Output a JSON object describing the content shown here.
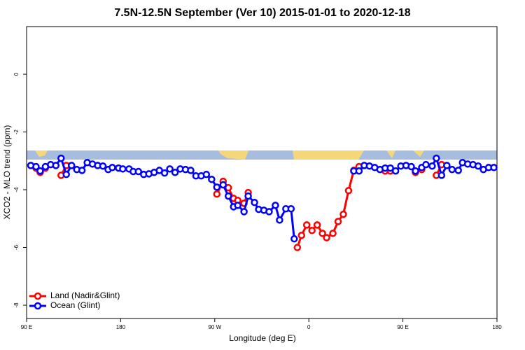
{
  "chart_data": {
    "type": "line",
    "title": "7.5N-12.5N September (Ver 10)   2015-01-01 to 2020-12-18",
    "x_label": "Longitude (deg E)",
    "y_label": "XCO2 - MLO trend (ppm)",
    "xlim": [
      -270,
      180
    ],
    "xticks": [
      {
        "value": -270,
        "label": "90 E"
      },
      {
        "value": -180,
        "label": "180"
      },
      {
        "value": -90,
        "label": "90 W"
      },
      0,
      {
        "value": 90,
        "label": "90 E"
      },
      180
    ],
    "ylim": [
      -8.46,
      1.65
    ],
    "yticks": [
      0,
      -2,
      -4,
      -6,
      -8
    ],
    "legend": "bottom-left",
    "series": [
      {
        "name": "Land (Nadir&Glint)",
        "color": "#ff0000",
        "x": [
          -261,
          -257,
          -252,
          null,
          -237,
          -232,
          null,
          -88,
          -82,
          -77,
          -72,
          -68,
          -62,
          -58,
          null,
          -11,
          -7,
          -2,
          3,
          8,
          13,
          17,
          23,
          28,
          33,
          38,
          43,
          48,
          null,
          73,
          78,
          null,
          102,
          108,
          null,
          122,
          127
        ],
        "values": [
          -3.25,
          -3.4,
          -3.25,
          null,
          -3.5,
          -3.16,
          null,
          -4.15,
          -3.71,
          -3.93,
          -4.3,
          -4.37,
          -4.47,
          -4.1,
          null,
          -6.0,
          -5.58,
          -5.22,
          -5.41,
          -5.22,
          -5.51,
          -5.66,
          -5.51,
          -5.1,
          -4.85,
          -4.03,
          -3.33,
          -3.2,
          null,
          -3.35,
          -3.35,
          null,
          -3.4,
          -3.3,
          null,
          -3.5,
          -3.13
        ]
      },
      {
        "name": "Ocean (Glint)",
        "color": "#0000ff",
        "x": [
          -266,
          -261,
          -257,
          -252,
          -247,
          -242,
          -237,
          -232,
          -227,
          -222,
          -217,
          -212,
          -207,
          -202,
          -197,
          -192,
          -188,
          -182,
          -178,
          -172,
          -168,
          -163,
          -158,
          -153,
          -148,
          -143,
          -138,
          -133,
          -128,
          -123,
          -118,
          -113,
          -108,
          -103,
          -98,
          -93,
          -88,
          -82,
          -77,
          -72,
          -68,
          -62,
          -58,
          -52,
          -48,
          -43,
          -38,
          -32,
          -28,
          -22,
          -17,
          -14,
          null,
          43,
          48,
          53,
          58,
          63,
          68,
          73,
          78,
          83,
          88,
          93,
          98,
          102,
          108,
          112,
          118,
          122,
          127,
          132,
          137,
          143,
          147,
          152,
          157,
          162,
          167,
          172,
          177
        ],
        "values": [
          -3.16,
          -3.2,
          -3.35,
          -3.2,
          -3.13,
          -3.16,
          -2.91,
          -3.47,
          -3.16,
          -3.3,
          -3.33,
          -3.06,
          -3.11,
          -3.16,
          -3.18,
          -3.3,
          -3.23,
          -3.25,
          -3.28,
          -3.28,
          -3.37,
          -3.37,
          -3.47,
          -3.45,
          -3.4,
          -3.33,
          -3.42,
          -3.28,
          -3.4,
          -3.28,
          -3.3,
          -3.33,
          -3.52,
          -3.52,
          -3.47,
          -3.64,
          -3.91,
          -3.83,
          -4.22,
          -4.59,
          -4.54,
          -4.76,
          -4.22,
          -4.44,
          -4.68,
          -4.71,
          -4.76,
          -4.54,
          -5.05,
          -4.66,
          -4.66,
          -5.7,
          null,
          -3.35,
          -3.35,
          -3.16,
          -3.18,
          -3.23,
          -3.3,
          -3.25,
          -3.25,
          -3.35,
          -3.18,
          -3.16,
          -3.2,
          -3.35,
          -3.23,
          -3.13,
          -3.18,
          -2.91,
          -3.5,
          -3.16,
          -3.3,
          -3.33,
          -3.06,
          -3.11,
          -3.13,
          -3.18,
          -3.3,
          -3.23,
          -3.23
        ]
      }
    ]
  }
}
